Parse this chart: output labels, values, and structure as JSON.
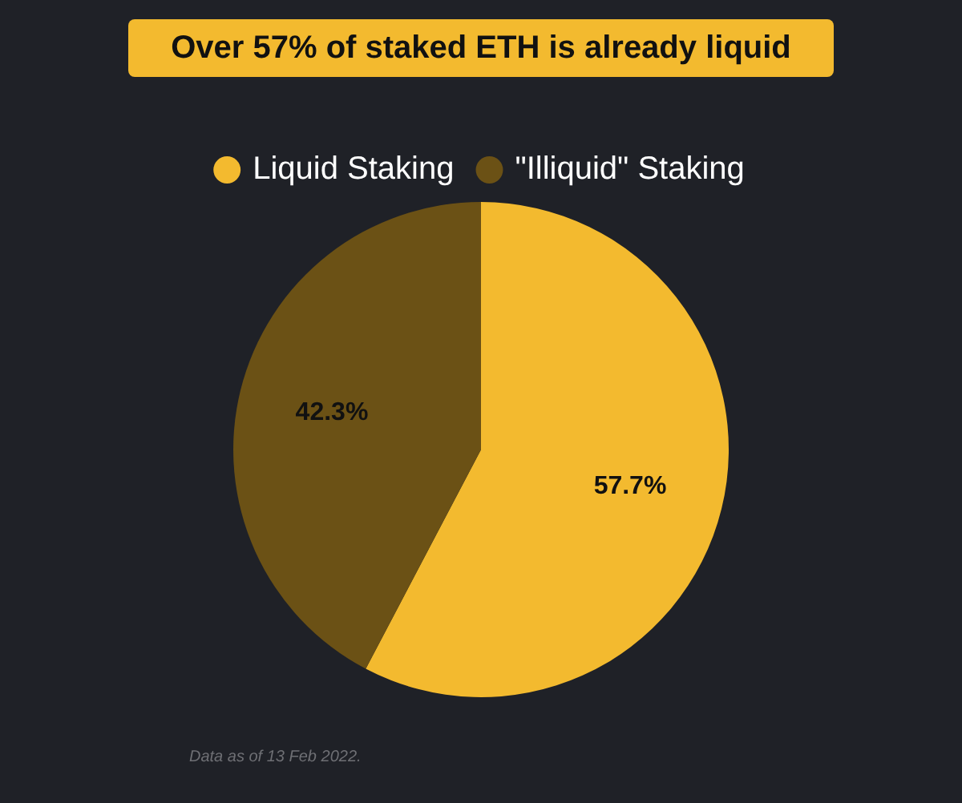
{
  "chart_data": {
    "type": "pie",
    "title": "Over 57% of staked ETH is already liquid",
    "categories": [
      "Liquid Staking",
      "\"Illiquid\" Staking"
    ],
    "values": [
      57.7,
      42.3
    ],
    "colors": [
      "#f3ba2f",
      "#6b5115"
    ],
    "value_labels": [
      "57.7%",
      "42.3%"
    ],
    "legend": "top",
    "annotations": [
      "Data as of 13 Feb 2022."
    ]
  }
}
